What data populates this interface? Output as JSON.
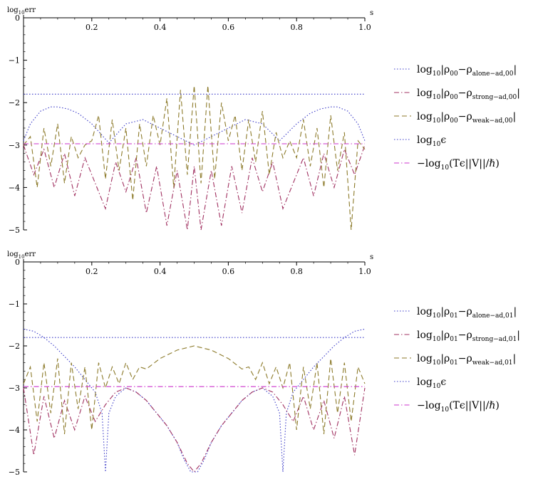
{
  "chart_data": [
    {
      "type": "line",
      "ylabel": "log10err",
      "xlabel": "s",
      "xlim": [
        0,
        1
      ],
      "ylim": [
        -5,
        0
      ],
      "xticks": [
        "0.2",
        "0.4",
        "0.6",
        "0.8",
        "1.0"
      ],
      "yticks": [
        "0",
        "−1",
        "−2",
        "−3",
        "−4",
        "−5"
      ],
      "legend_placement": "right",
      "series": [
        {
          "name": "log10|ρ00−ρalone−ad,00|",
          "color": "#3b3bc8",
          "style": "dotted",
          "x": [
            0,
            0.02,
            0.05,
            0.08,
            0.1,
            0.13,
            0.16,
            0.2,
            0.25,
            0.3,
            0.35,
            0.4,
            0.45,
            0.5,
            0.55,
            0.6,
            0.65,
            0.7,
            0.75,
            0.8,
            0.84,
            0.87,
            0.9,
            0.92,
            0.95,
            0.98,
            1.0
          ],
          "values": [
            -2.9,
            -2.5,
            -2.2,
            -2.1,
            -2.1,
            -2.15,
            -2.25,
            -2.5,
            -2.95,
            -2.5,
            -2.4,
            -2.6,
            -2.8,
            -3.0,
            -2.8,
            -2.6,
            -2.4,
            -2.5,
            -2.9,
            -2.5,
            -2.25,
            -2.15,
            -2.1,
            -2.1,
            -2.2,
            -2.5,
            -2.9
          ]
        },
        {
          "name": "log10|ρ00−ρstrong−ad,00|",
          "color": "#a03060",
          "style": "dash-dot",
          "x": [
            0,
            0.03,
            0.06,
            0.09,
            0.12,
            0.15,
            0.18,
            0.21,
            0.24,
            0.27,
            0.3,
            0.33,
            0.36,
            0.39,
            0.42,
            0.45,
            0.48,
            0.5,
            0.52,
            0.55,
            0.58,
            0.61,
            0.64,
            0.67,
            0.7,
            0.73,
            0.76,
            0.79,
            0.82,
            0.85,
            0.88,
            0.91,
            0.94,
            0.97,
            1.0
          ],
          "values": [
            -3.0,
            -3.7,
            -3.1,
            -4.0,
            -3.2,
            -4.2,
            -3.3,
            -3.9,
            -4.5,
            -3.4,
            -4.1,
            -3.3,
            -4.6,
            -3.5,
            -4.9,
            -3.6,
            -5.0,
            -3.5,
            -5.0,
            -3.6,
            -4.9,
            -3.5,
            -4.6,
            -3.3,
            -4.1,
            -3.4,
            -4.5,
            -3.9,
            -3.3,
            -4.2,
            -3.2,
            -4.0,
            -3.1,
            -3.7,
            -3.0
          ]
        },
        {
          "name": "log10|ρ00−ρweak−ad,00|",
          "color": "#8c7a2a",
          "style": "dashed",
          "x": [
            0,
            0.02,
            0.04,
            0.06,
            0.08,
            0.1,
            0.12,
            0.14,
            0.16,
            0.18,
            0.2,
            0.22,
            0.24,
            0.26,
            0.28,
            0.3,
            0.32,
            0.34,
            0.36,
            0.38,
            0.4,
            0.42,
            0.44,
            0.46,
            0.48,
            0.5,
            0.52,
            0.54,
            0.56,
            0.58,
            0.6,
            0.62,
            0.64,
            0.66,
            0.68,
            0.7,
            0.72,
            0.74,
            0.76,
            0.78,
            0.8,
            0.82,
            0.84,
            0.86,
            0.88,
            0.9,
            0.92,
            0.94,
            0.96,
            0.98,
            1.0
          ],
          "values": [
            -3.0,
            -2.8,
            -4.0,
            -2.6,
            -3.5,
            -2.5,
            -3.9,
            -2.8,
            -3.3,
            -3.0,
            -2.9,
            -2.3,
            -3.8,
            -2.4,
            -3.6,
            -2.6,
            -4.3,
            -2.5,
            -3.5,
            -2.3,
            -3.0,
            -1.9,
            -4.0,
            -1.7,
            -3.7,
            -1.6,
            -3.9,
            -1.6,
            -3.8,
            -2.0,
            -2.9,
            -2.3,
            -3.6,
            -2.4,
            -3.4,
            -2.2,
            -3.7,
            -2.7,
            -3.3,
            -2.9,
            -3.3,
            -2.4,
            -3.5,
            -2.6,
            -4.0,
            -2.3,
            -3.6,
            -2.7,
            -5.0,
            -2.9,
            -3.1
          ]
        },
        {
          "name": "log10ϵ",
          "color": "#3b3bc8",
          "style": "dotted",
          "x": [
            0,
            1
          ],
          "values": [
            -1.8,
            -1.8
          ]
        },
        {
          "name": "−log10(Tϵ||V||/ℏ)",
          "color": "#cc33cc",
          "style": "dash-dot",
          "x": [
            0,
            1
          ],
          "values": [
            -2.97,
            -2.97
          ]
        }
      ]
    },
    {
      "type": "line",
      "ylabel": "log10err",
      "xlabel": "s",
      "xlim": [
        0,
        1
      ],
      "ylim": [
        -5,
        0
      ],
      "xticks": [
        "0.2",
        "0.4",
        "0.6",
        "0.8",
        "1.0"
      ],
      "yticks": [
        "0",
        "−1",
        "−2",
        "−3",
        "−4",
        "−5"
      ],
      "legend_placement": "right",
      "series": [
        {
          "name": "log10|ρ01−ρalone−ad,01|",
          "color": "#3b3bc8",
          "style": "dotted",
          "x": [
            0,
            0.03,
            0.06,
            0.09,
            0.12,
            0.15,
            0.18,
            0.21,
            0.23,
            0.24,
            0.25,
            0.27,
            0.3,
            0.33,
            0.36,
            0.39,
            0.42,
            0.45,
            0.47,
            0.49,
            0.5,
            0.51,
            0.53,
            0.55,
            0.58,
            0.61,
            0.64,
            0.67,
            0.7,
            0.73,
            0.75,
            0.76,
            0.77,
            0.79,
            0.82,
            0.85,
            0.88,
            0.91,
            0.94,
            0.97,
            1.0
          ],
          "values": [
            -1.6,
            -1.65,
            -1.8,
            -2.0,
            -2.25,
            -2.5,
            -2.8,
            -3.1,
            -3.6,
            -5.0,
            -3.6,
            -3.2,
            -3.0,
            -3.1,
            -3.3,
            -3.6,
            -3.9,
            -4.3,
            -4.7,
            -5.0,
            -5.0,
            -5.0,
            -4.7,
            -4.3,
            -3.9,
            -3.6,
            -3.3,
            -3.1,
            -3.0,
            -3.2,
            -3.6,
            -5.0,
            -3.6,
            -3.1,
            -2.8,
            -2.5,
            -2.25,
            -2.0,
            -1.8,
            -1.65,
            -1.6
          ]
        },
        {
          "name": "log10|ρ01−ρstrong−ad,01|",
          "color": "#a03060",
          "style": "dash-dot",
          "x": [
            0,
            0.03,
            0.06,
            0.09,
            0.12,
            0.15,
            0.18,
            0.21,
            0.24,
            0.27,
            0.3,
            0.33,
            0.36,
            0.39,
            0.42,
            0.45,
            0.48,
            0.5,
            0.52,
            0.55,
            0.58,
            0.61,
            0.64,
            0.67,
            0.7,
            0.73,
            0.76,
            0.79,
            0.82,
            0.85,
            0.88,
            0.91,
            0.94,
            0.97,
            1.0
          ],
          "values": [
            -3.0,
            -4.6,
            -3.2,
            -4.2,
            -3.3,
            -4.0,
            -3.2,
            -3.8,
            -3.4,
            -3.1,
            -3.0,
            -3.1,
            -3.3,
            -3.6,
            -3.9,
            -4.3,
            -4.8,
            -5.0,
            -4.8,
            -4.3,
            -3.9,
            -3.6,
            -3.3,
            -3.1,
            -3.0,
            -3.1,
            -3.4,
            -3.8,
            -3.2,
            -4.0,
            -3.3,
            -4.2,
            -3.2,
            -4.6,
            -3.0
          ]
        },
        {
          "name": "log10|ρ01−ρweak−ad,01|",
          "color": "#8c7a2a",
          "style": "dashed",
          "x": [
            0,
            0.02,
            0.04,
            0.06,
            0.08,
            0.1,
            0.12,
            0.14,
            0.16,
            0.18,
            0.2,
            0.22,
            0.24,
            0.26,
            0.28,
            0.3,
            0.32,
            0.34,
            0.36,
            0.4,
            0.45,
            0.5,
            0.55,
            0.6,
            0.64,
            0.66,
            0.68,
            0.7,
            0.72,
            0.74,
            0.76,
            0.78,
            0.8,
            0.82,
            0.84,
            0.86,
            0.88,
            0.9,
            0.92,
            0.94,
            0.96,
            0.98,
            1.0
          ],
          "values": [
            -2.9,
            -2.5,
            -3.8,
            -2.4,
            -3.6,
            -2.3,
            -4.1,
            -2.4,
            -3.5,
            -2.5,
            -4.0,
            -2.4,
            -3.0,
            -2.5,
            -2.9,
            -2.4,
            -2.8,
            -2.5,
            -2.55,
            -2.3,
            -2.1,
            -2.0,
            -2.1,
            -2.3,
            -2.55,
            -2.5,
            -2.8,
            -2.4,
            -2.9,
            -2.5,
            -3.0,
            -2.4,
            -4.0,
            -2.5,
            -3.5,
            -2.4,
            -4.1,
            -2.3,
            -3.6,
            -2.4,
            -3.8,
            -2.5,
            -2.9
          ]
        },
        {
          "name": "log10ϵ",
          "color": "#3b3bc8",
          "style": "dotted",
          "x": [
            0,
            1
          ],
          "values": [
            -1.8,
            -1.8
          ]
        },
        {
          "name": "−log10(Tϵ||V||/ℏ)",
          "color": "#cc33cc",
          "style": "dash-dot",
          "x": [
            0,
            1
          ],
          "values": [
            -2.97,
            -2.97
          ]
        }
      ]
    }
  ],
  "legends": [
    {
      "entries": [
        {
          "pre": "log",
          "sub1": "10",
          "mid": "|ρ",
          "sub2": "00",
          "mid2": "−ρ",
          "sub3": "alone−ad,00",
          "post": "|"
        },
        {
          "pre": "log",
          "sub1": "10",
          "mid": "|ρ",
          "sub2": "00",
          "mid2": "−ρ",
          "sub3": "strong−ad,00",
          "post": "|"
        },
        {
          "pre": "log",
          "sub1": "10",
          "mid": "|ρ",
          "sub2": "00",
          "mid2": "−ρ",
          "sub3": "weak−ad,00",
          "post": "|"
        },
        {
          "pre": "log",
          "sub1": "10",
          "mid": "ϵ",
          "sub2": "",
          "mid2": "",
          "sub3": "",
          "post": ""
        },
        {
          "pre": "−log",
          "sub1": "10",
          "mid": "(Tϵ||V||/ℏ)",
          "sub2": "",
          "mid2": "",
          "sub3": "",
          "post": ""
        }
      ]
    },
    {
      "entries": [
        {
          "pre": "log",
          "sub1": "10",
          "mid": "|ρ",
          "sub2": "01",
          "mid2": "−ρ",
          "sub3": "alone−ad,01",
          "post": "|"
        },
        {
          "pre": "log",
          "sub1": "10",
          "mid": "|ρ",
          "sub2": "01",
          "mid2": "−ρ",
          "sub3": "strong−ad,01",
          "post": "|"
        },
        {
          "pre": "log",
          "sub1": "10",
          "mid": "|ρ",
          "sub2": "01",
          "mid2": "−ρ",
          "sub3": "weak−ad,01",
          "post": "|"
        },
        {
          "pre": "log",
          "sub1": "10",
          "mid": "ϵ",
          "sub2": "",
          "mid2": "",
          "sub3": "",
          "post": ""
        },
        {
          "pre": "−log",
          "sub1": "10",
          "mid": "(Tϵ||V||/ℏ)",
          "sub2": "",
          "mid2": "",
          "sub3": "",
          "post": ""
        }
      ]
    }
  ],
  "axis_titles": {
    "y_main": "log",
    "y_sub": "10",
    "y_post": "err",
    "x": "s"
  }
}
